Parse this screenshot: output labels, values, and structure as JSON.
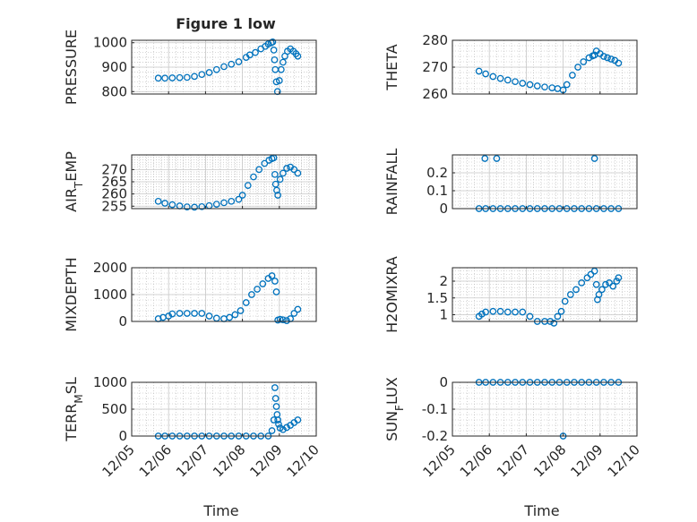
{
  "figure": {
    "title": "Figure 1 low",
    "marker_color": "#0072BD",
    "axis_color": "#262626",
    "grid_color": "#b3b3b3",
    "xlabel": "Time",
    "x_dates": [
      "12/05",
      "12/06",
      "12/07",
      "12/08",
      "12/09",
      "12/10"
    ]
  },
  "chart_data": [
    {
      "type": "scatter",
      "id": "pressure",
      "title": "Figure 1 low",
      "ylabel": "PRESSURE",
      "ylim": [
        790,
        1010
      ],
      "yticks": [
        800,
        900,
        1000
      ],
      "xlabel": "",
      "xlim": [
        0,
        5
      ],
      "grid": true,
      "minor_grid": true,
      "x": [
        0.72,
        0.9,
        1.1,
        1.3,
        1.5,
        1.7,
        1.9,
        2.1,
        2.3,
        2.5,
        2.7,
        2.9,
        3.1,
        3.2,
        3.35,
        3.5,
        3.62,
        3.7,
        3.78,
        3.82,
        3.85,
        3.87,
        3.89,
        3.92,
        3.95,
        4.0,
        4.05,
        4.1,
        4.15,
        4.22,
        4.3,
        4.38,
        4.45,
        4.5
      ],
      "y": [
        855,
        855,
        856,
        857,
        858,
        862,
        870,
        878,
        890,
        902,
        912,
        922,
        940,
        950,
        960,
        975,
        985,
        995,
        1000,
        1003,
        970,
        930,
        890,
        840,
        800,
        845,
        890,
        920,
        945,
        965,
        975,
        965,
        955,
        945
      ]
    },
    {
      "type": "scatter",
      "id": "theta",
      "title": "",
      "ylabel": "THETA",
      "ylim": [
        260,
        280
      ],
      "yticks": [
        260,
        270,
        280
      ],
      "xlabel": "",
      "xlim": [
        0,
        5
      ],
      "grid": true,
      "minor_grid": true,
      "x": [
        0.72,
        0.9,
        1.1,
        1.3,
        1.5,
        1.7,
        1.9,
        2.1,
        2.3,
        2.5,
        2.7,
        2.85,
        3.0,
        3.1,
        3.25,
        3.4,
        3.55,
        3.7,
        3.8,
        3.85,
        3.9,
        4.0,
        4.1,
        4.2,
        4.3,
        4.4,
        4.5
      ],
      "y": [
        268.5,
        267.5,
        266.5,
        265.8,
        265.2,
        264.6,
        264.0,
        263.5,
        263.0,
        262.6,
        262.3,
        262.0,
        261.5,
        263.5,
        267.0,
        270.0,
        272.0,
        273.5,
        274.2,
        274.5,
        276.0,
        275.0,
        274.0,
        273.5,
        273.0,
        272.5,
        271.5
      ]
    },
    {
      "type": "scatter",
      "id": "air_temp",
      "title": "",
      "ylabel": "AIR_TEMP",
      "ylim": [
        254,
        276
      ],
      "yticks": [
        255,
        260,
        265,
        270
      ],
      "xlabel": "",
      "xlim": [
        0,
        5
      ],
      "grid": true,
      "minor_grid": true,
      "x": [
        0.72,
        0.9,
        1.1,
        1.3,
        1.5,
        1.7,
        1.9,
        2.1,
        2.3,
        2.5,
        2.7,
        2.9,
        3.0,
        3.15,
        3.3,
        3.45,
        3.6,
        3.72,
        3.8,
        3.85,
        3.88,
        3.9,
        3.93,
        3.96,
        4.02,
        4.1,
        4.2,
        4.3,
        4.4,
        4.5
      ],
      "y": [
        257,
        256.2,
        255.6,
        255.1,
        254.7,
        254.6,
        254.8,
        255.2,
        255.8,
        256.4,
        257.0,
        257.8,
        259.5,
        263.5,
        267.0,
        270.0,
        272.5,
        273.8,
        274.5,
        274.8,
        268.0,
        264.0,
        261.5,
        259.5,
        266.0,
        268.5,
        270.5,
        271.0,
        270.0,
        268.5
      ]
    },
    {
      "type": "scatter",
      "id": "rainfall",
      "title": "",
      "ylabel": "RAINFALL",
      "ylim": [
        0,
        0.3
      ],
      "yticks": [
        0,
        0.1,
        0.2
      ],
      "xlabel": "",
      "xlim": [
        0,
        5
      ],
      "grid": true,
      "minor_grid": true,
      "x": [
        0.72,
        0.9,
        1.1,
        1.3,
        1.5,
        1.7,
        1.9,
        2.1,
        2.3,
        2.5,
        2.7,
        2.9,
        3.1,
        3.3,
        3.5,
        3.7,
        3.9,
        4.1,
        4.3,
        4.5,
        0.88,
        1.2,
        3.85
      ],
      "y": [
        0,
        0,
        0,
        0,
        0,
        0,
        0,
        0,
        0,
        0,
        0,
        0,
        0,
        0,
        0,
        0,
        0,
        0,
        0,
        0,
        0.28,
        0.28,
        0.28
      ]
    },
    {
      "type": "scatter",
      "id": "mixdepth",
      "title": "",
      "ylabel": "MIXDEPTH",
      "ylim": [
        0,
        2000
      ],
      "yticks": [
        0,
        1000,
        2000
      ],
      "xlabel": "",
      "xlim": [
        0,
        5
      ],
      "grid": true,
      "minor_grid": true,
      "x": [
        0.72,
        0.85,
        1.0,
        1.1,
        1.3,
        1.5,
        1.7,
        1.9,
        2.1,
        2.3,
        2.5,
        2.65,
        2.8,
        2.95,
        3.1,
        3.25,
        3.4,
        3.55,
        3.7,
        3.8,
        3.88,
        3.92,
        3.96,
        4.02,
        4.1,
        4.2,
        4.3,
        4.4,
        4.5
      ],
      "y": [
        100,
        150,
        200,
        280,
        300,
        300,
        300,
        300,
        200,
        120,
        100,
        150,
        250,
        400,
        700,
        1000,
        1200,
        1400,
        1600,
        1700,
        1500,
        1100,
        50,
        80,
        60,
        30,
        100,
        300,
        450
      ]
    },
    {
      "type": "scatter",
      "id": "h2omixra",
      "title": "",
      "ylabel": "H2OMIXRA",
      "ylim": [
        0.8,
        2.4
      ],
      "yticks": [
        1,
        1.5,
        2
      ],
      "xlabel": "",
      "xlim": [
        0,
        5
      ],
      "grid": true,
      "minor_grid": true,
      "x": [
        0.72,
        0.8,
        0.9,
        1.1,
        1.3,
        1.5,
        1.7,
        1.9,
        2.1,
        2.3,
        2.5,
        2.65,
        2.75,
        2.85,
        2.95,
        3.05,
        3.2,
        3.35,
        3.5,
        3.65,
        3.75,
        3.85,
        3.9,
        3.93,
        3.97,
        4.05,
        4.15,
        4.25,
        4.35,
        4.45,
        4.5
      ],
      "y": [
        0.95,
        1.02,
        1.08,
        1.1,
        1.1,
        1.08,
        1.08,
        1.08,
        0.95,
        0.8,
        0.8,
        0.8,
        0.75,
        0.95,
        1.1,
        1.4,
        1.6,
        1.75,
        1.95,
        2.1,
        2.2,
        2.3,
        1.9,
        1.45,
        1.6,
        1.75,
        1.9,
        1.95,
        1.85,
        2.0,
        2.1
      ]
    },
    {
      "type": "scatter",
      "id": "terr_msl",
      "title": "",
      "ylabel": "TERR_MSL",
      "ylim": [
        0,
        1000
      ],
      "yticks": [
        0,
        500,
        1000
      ],
      "xlabel": "Time",
      "xlim": [
        0,
        5
      ],
      "grid": true,
      "minor_grid": true,
      "x": [
        0.72,
        0.9,
        1.1,
        1.3,
        1.5,
        1.7,
        1.9,
        2.1,
        2.3,
        2.5,
        2.7,
        2.9,
        3.1,
        3.3,
        3.5,
        3.7,
        3.8,
        3.85,
        3.88,
        3.9,
        3.92,
        3.94,
        3.96,
        3.98,
        4.02,
        4.1,
        4.2,
        4.3,
        4.4,
        4.5
      ],
      "y": [
        0,
        0,
        0,
        0,
        0,
        0,
        0,
        0,
        0,
        0,
        0,
        0,
        0,
        0,
        0,
        0,
        100,
        300,
        900,
        700,
        550,
        400,
        300,
        220,
        150,
        120,
        160,
        200,
        250,
        300
      ]
    },
    {
      "type": "scatter",
      "id": "sun_flux",
      "title": "",
      "ylabel": "SUN_FLUX",
      "ylim": [
        -0.2,
        0
      ],
      "yticks": [
        -0.2,
        -0.1,
        0
      ],
      "xlabel": "Time",
      "xlim": [
        0,
        5
      ],
      "grid": true,
      "minor_grid": true,
      "x": [
        0.72,
        0.9,
        1.1,
        1.3,
        1.5,
        1.7,
        1.9,
        2.1,
        2.3,
        2.5,
        2.7,
        2.9,
        3.1,
        3.3,
        3.5,
        3.7,
        3.9,
        4.1,
        4.3,
        4.5,
        3.0
      ],
      "y": [
        0,
        0,
        0,
        0,
        0,
        0,
        0,
        0,
        0,
        0,
        0,
        0,
        0,
        0,
        0,
        0,
        0,
        0,
        0,
        0,
        -0.2
      ]
    }
  ]
}
